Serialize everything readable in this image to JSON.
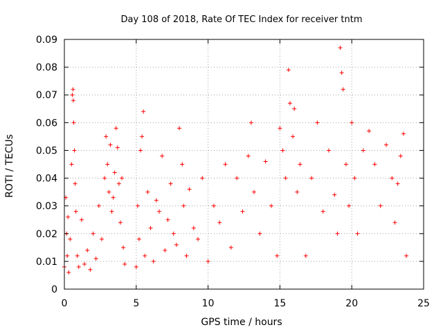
{
  "chart_data": {
    "type": "scatter",
    "title": "Day 108 of 2018, Rate Of TEC Index for receiver tntm",
    "xlabel": "GPS time / hours",
    "ylabel": "ROTI / TECUs",
    "xlim": [
      0,
      25
    ],
    "ylim": [
      0,
      0.09
    ],
    "x_ticks": [
      0,
      5,
      10,
      15,
      20,
      25
    ],
    "x_tick_labels": [
      "0",
      "5",
      "10",
      "15",
      "20",
      "25"
    ],
    "y_ticks": [
      0,
      0.01,
      0.02,
      0.03,
      0.04,
      0.05,
      0.06,
      0.07,
      0.08,
      0.09
    ],
    "y_tick_labels": [
      "0",
      "0.01",
      "0.02",
      "0.03",
      "0.04",
      "0.05",
      "0.06",
      "0.07",
      "0.08",
      "0.09"
    ],
    "grid": true,
    "marker": "+",
    "marker_color": "#ff0000",
    "grid_color": "#a0a0a0",
    "data_gaps_hours": [
      [
        4.3,
        4.9
      ]
    ],
    "series": [
      {
        "name": "ROTI",
        "x": [
          0.0,
          0.1,
          0.15,
          0.2,
          0.25,
          0.3,
          0.4,
          0.5,
          0.55,
          0.6,
          0.62,
          0.65,
          0.7,
          0.75,
          0.8,
          0.9,
          1.0,
          1.2,
          1.4,
          1.6,
          1.8,
          2.0,
          2.2,
          2.4,
          2.6,
          2.8,
          2.9,
          3.0,
          3.1,
          3.2,
          3.3,
          3.4,
          3.5,
          3.6,
          3.7,
          3.8,
          3.9,
          4.0,
          4.1,
          4.2,
          5.0,
          5.1,
          5.2,
          5.3,
          5.4,
          5.5,
          5.6,
          5.8,
          6.0,
          6.2,
          6.4,
          6.6,
          6.8,
          7.0,
          7.2,
          7.4,
          7.6,
          7.8,
          8.0,
          8.2,
          8.3,
          8.5,
          8.7,
          9.0,
          9.3,
          9.6,
          10.0,
          10.4,
          10.8,
          11.2,
          11.6,
          12.0,
          12.4,
          12.8,
          13.0,
          13.2,
          13.6,
          14.0,
          14.4,
          14.8,
          15.0,
          15.2,
          15.4,
          15.6,
          15.7,
          15.9,
          16.0,
          16.2,
          16.4,
          16.8,
          17.2,
          17.6,
          18.0,
          18.4,
          18.8,
          19.0,
          19.2,
          19.3,
          19.4,
          19.6,
          19.8,
          20.0,
          20.2,
          20.4,
          20.8,
          21.2,
          21.6,
          22.0,
          22.4,
          22.8,
          23.0,
          23.2,
          23.4,
          23.6,
          23.8
        ],
        "y": [
          0.008,
          0.033,
          0.02,
          0.012,
          0.026,
          0.006,
          0.018,
          0.045,
          0.07,
          0.072,
          0.068,
          0.06,
          0.05,
          0.038,
          0.028,
          0.012,
          0.008,
          0.025,
          0.009,
          0.014,
          0.007,
          0.02,
          0.011,
          0.03,
          0.018,
          0.04,
          0.055,
          0.045,
          0.035,
          0.052,
          0.028,
          0.033,
          0.042,
          0.058,
          0.051,
          0.038,
          0.024,
          0.04,
          0.015,
          0.009,
          0.008,
          0.03,
          0.018,
          0.05,
          0.055,
          0.064,
          0.012,
          0.035,
          0.022,
          0.01,
          0.032,
          0.028,
          0.048,
          0.014,
          0.025,
          0.038,
          0.02,
          0.016,
          0.058,
          0.045,
          0.03,
          0.012,
          0.036,
          0.022,
          0.018,
          0.04,
          0.01,
          0.03,
          0.024,
          0.045,
          0.015,
          0.04,
          0.028,
          0.048,
          0.06,
          0.035,
          0.02,
          0.046,
          0.03,
          0.012,
          0.058,
          0.05,
          0.04,
          0.079,
          0.067,
          0.055,
          0.065,
          0.035,
          0.045,
          0.012,
          0.04,
          0.06,
          0.028,
          0.05,
          0.034,
          0.02,
          0.087,
          0.078,
          0.072,
          0.045,
          0.03,
          0.06,
          0.04,
          0.02,
          0.05,
          0.057,
          0.045,
          0.03,
          0.052,
          0.04,
          0.024,
          0.038,
          0.048,
          0.056,
          0.012
        ]
      }
    ]
  }
}
